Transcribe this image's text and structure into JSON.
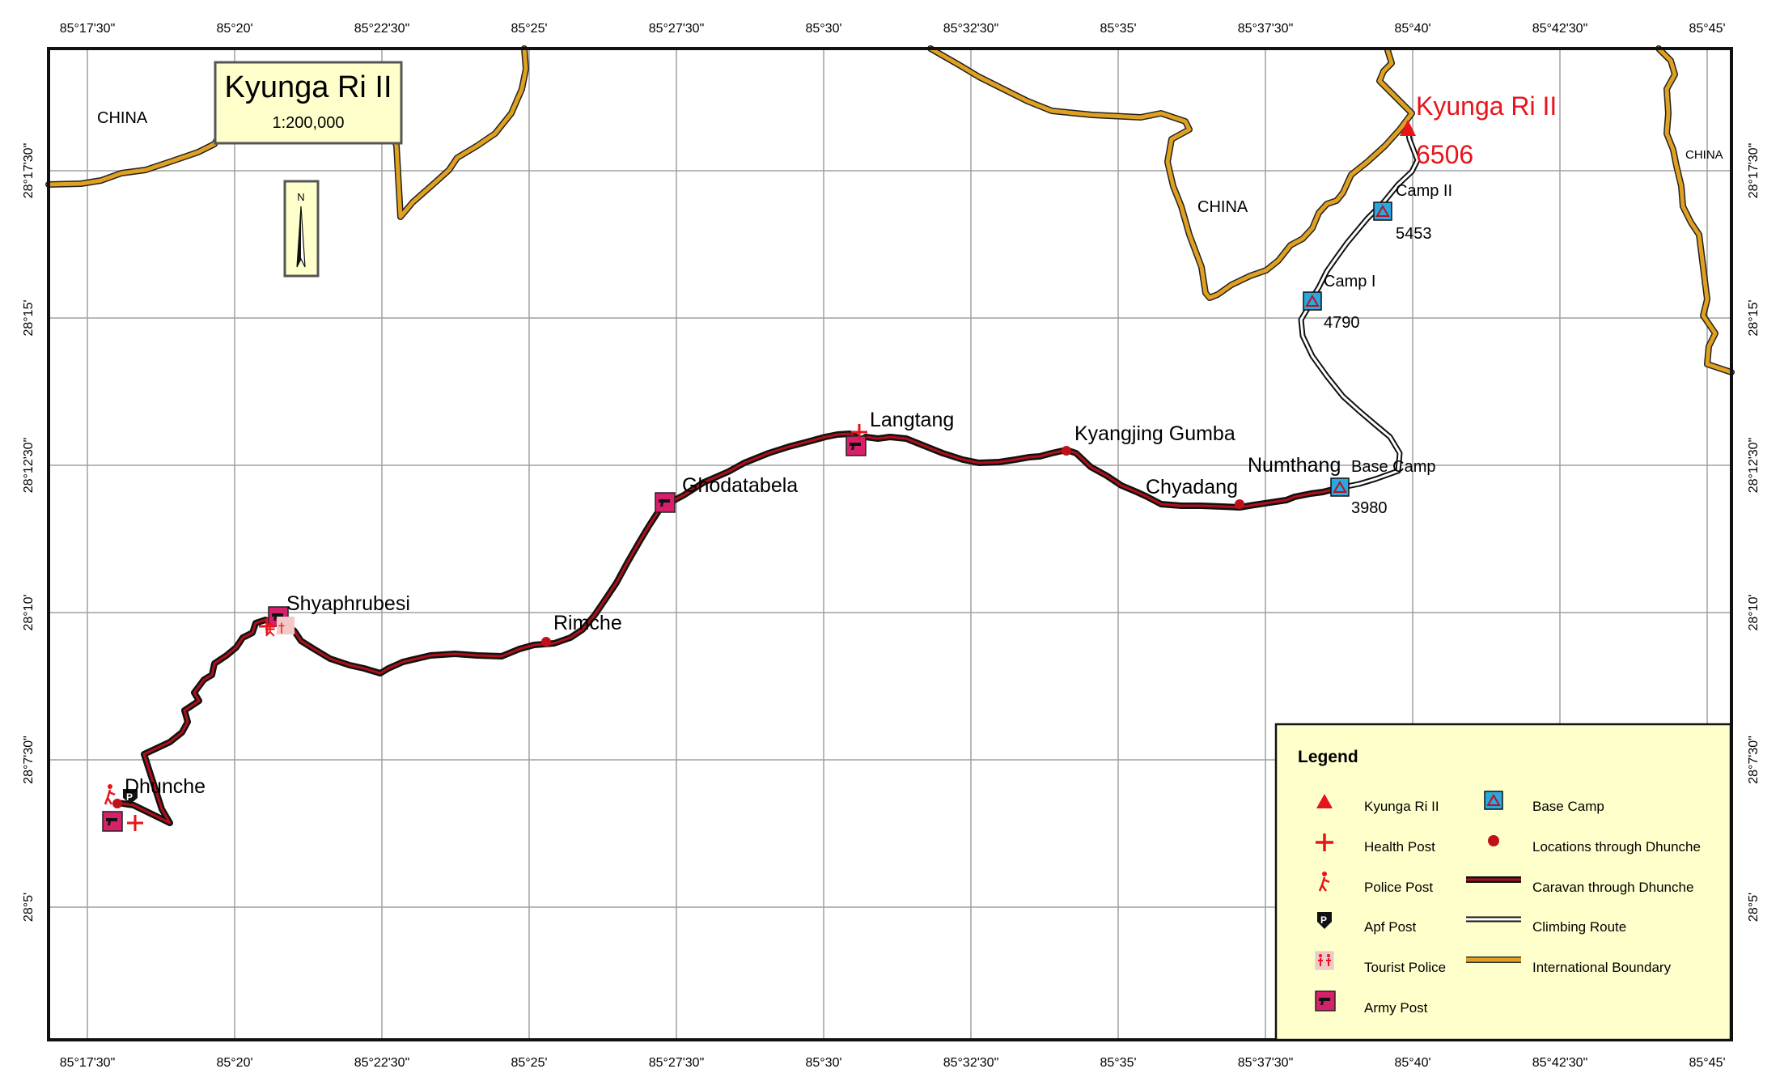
{
  "title": {
    "name": "Kyunga Ri II",
    "scale": "1:200,000"
  },
  "north_arrow": {
    "label": "N",
    "icon": "north-arrow-icon"
  },
  "longitude_ticks": [
    "85°17'30\"",
    "85°20'",
    "85°22'30\"",
    "85°25'",
    "85°27'30\"",
    "85°30'",
    "85°32'30\"",
    "85°35'",
    "85°37'30\"",
    "85°40'",
    "85°42'30\"",
    "85°45'"
  ],
  "latitude_ticks": [
    "28°17'30\"",
    "28°15'",
    "28°12'30\"",
    "28°10'",
    "28°7'30\"",
    "28°5'"
  ],
  "countries": [
    "CHINA",
    "CHINA",
    "CHINA"
  ],
  "peak": {
    "name": "Kyunga Ri II",
    "elevation": "6506"
  },
  "camps": [
    {
      "name": "Camp II",
      "elevation": "5453"
    },
    {
      "name": "Camp I",
      "elevation": "4790"
    },
    {
      "name": "Base Camp",
      "elevation": "3980"
    }
  ],
  "places": [
    "Langtang",
    "Kyangjing Gumba",
    "Ghodatabela",
    "Numthang",
    "Chyadang",
    "Shyaphrubesi",
    "Rimche",
    "Dhunche"
  ],
  "legend": {
    "title": "Legend",
    "left": [
      {
        "label": "Kyunga Ri II",
        "icon": "peak-triangle-icon"
      },
      {
        "label": "Health Post",
        "icon": "health-cross-icon"
      },
      {
        "label": "Police Post",
        "icon": "police-figure-icon"
      },
      {
        "label": "Apf Post",
        "icon": "apf-shield-icon"
      },
      {
        "label": "Tourist Police",
        "icon": "tourist-police-icon"
      },
      {
        "label": "Army Post",
        "icon": "army-post-icon"
      }
    ],
    "right": [
      {
        "label": "Base Camp",
        "icon": "base-camp-icon"
      },
      {
        "label": "Locations through Dhunche",
        "icon": "location-dot-icon"
      },
      {
        "label": "Caravan through Dhunche",
        "icon": "caravan-line-icon"
      },
      {
        "label": "Climbing Route",
        "icon": "climbing-route-line-icon"
      },
      {
        "label": "International Boundary",
        "icon": "boundary-line-icon"
      }
    ]
  },
  "colors": {
    "boundary": "#e0a020",
    "caravan": "#b0101a",
    "peak": "#e8141b",
    "base_camp": "#29a9e0",
    "army_post": "#d6206a",
    "legend_bg": "#ffffcc",
    "title_bg": "#ffffcc"
  }
}
